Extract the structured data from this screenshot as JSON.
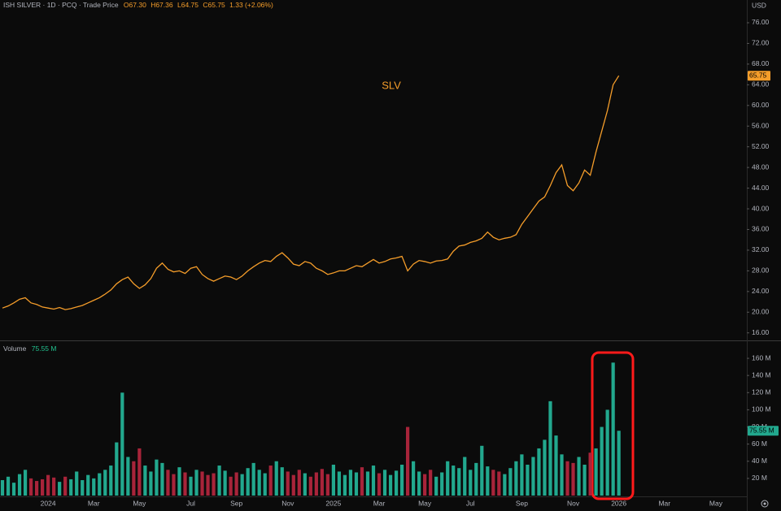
{
  "chart_data": [
    {
      "type": "line",
      "title": "ISH SILVER · 1D · PCQ · Trade Price",
      "ohlc_labels": [
        "O67.30",
        "H67.36",
        "L64.75",
        "C65.75"
      ],
      "change_label": "1.33 (+2.06%)",
      "annotation": "SLV",
      "currency": "USD",
      "last_price_label": "65.75",
      "color": "#f59d2a",
      "categories": [
        null,
        null,
        null,
        null,
        null,
        null,
        null,
        null,
        "2024",
        null,
        null,
        null,
        null,
        null,
        null,
        null,
        "Mar",
        null,
        null,
        null,
        null,
        null,
        null,
        null,
        "May",
        null,
        null,
        null,
        null,
        null,
        null,
        null,
        null,
        "Jul",
        null,
        null,
        null,
        null,
        null,
        null,
        null,
        "Sep",
        null,
        null,
        null,
        null,
        null,
        null,
        null,
        null,
        "Nov",
        null,
        null,
        null,
        null,
        null,
        null,
        null,
        "2025",
        null,
        null,
        null,
        null,
        null,
        null,
        null,
        "Mar",
        null,
        null,
        null,
        null,
        null,
        null,
        null,
        "May",
        null,
        null,
        null,
        null,
        null,
        null,
        null,
        "Jul",
        null,
        null,
        null,
        null,
        null,
        null,
        null,
        null,
        "Sep",
        null,
        null,
        null,
        null,
        null,
        null,
        null,
        null,
        "Nov",
        null,
        null,
        null,
        null,
        null,
        null,
        null,
        "2026",
        null,
        null,
        null,
        null,
        null,
        null,
        null,
        "Mar",
        null,
        null,
        null,
        null,
        null,
        null,
        null,
        null,
        "May",
        null,
        null,
        null,
        null,
        null
      ],
      "values": [
        20.8,
        21.2,
        21.8,
        22.5,
        22.8,
        21.8,
        21.5,
        21.0,
        20.8,
        20.6,
        20.9,
        20.5,
        20.7,
        21.0,
        21.3,
        21.8,
        22.3,
        22.8,
        23.5,
        24.3,
        25.5,
        26.3,
        26.8,
        25.5,
        24.6,
        25.3,
        26.5,
        28.5,
        29.5,
        28.3,
        27.8,
        28.0,
        27.5,
        28.5,
        28.8,
        27.3,
        26.5,
        26.0,
        26.5,
        27.0,
        26.8,
        26.3,
        27.0,
        28.0,
        28.8,
        29.5,
        30.0,
        29.8,
        30.8,
        31.5,
        30.5,
        29.3,
        29.0,
        29.8,
        29.5,
        28.5,
        28.0,
        27.3,
        27.6,
        28.0,
        28.0,
        28.5,
        29.0,
        28.8,
        29.5,
        30.2,
        29.5,
        29.8,
        30.3,
        30.5,
        30.8,
        28.0,
        29.3,
        30.0,
        29.8,
        29.5,
        29.9,
        30.0,
        30.3,
        31.8,
        32.8,
        33.0,
        33.5,
        33.8,
        34.3,
        35.5,
        34.5,
        34.0,
        34.3,
        34.5,
        35.0,
        37.0,
        38.5,
        40.0,
        41.5,
        42.3,
        44.5,
        47.0,
        48.5,
        44.5,
        43.5,
        45.0,
        47.5,
        46.5,
        51.0,
        55.0,
        59.0,
        64.0,
        65.75,
        null,
        null,
        null,
        null,
        null,
        null,
        null,
        null,
        null,
        null,
        null,
        null,
        null,
        null,
        null,
        null,
        null,
        null,
        null,
        null,
        null,
        null
      ],
      "ylim": [
        14.7,
        80.4
      ],
      "yticks": [
        {
          "value": 16,
          "label": "16.00"
        },
        {
          "value": 20,
          "label": "20.00"
        },
        {
          "value": 24,
          "label": "24.00"
        },
        {
          "value": 28,
          "label": "28.00"
        },
        {
          "value": 32,
          "label": "32.00"
        },
        {
          "value": 36,
          "label": "36.00"
        },
        {
          "value": 40,
          "label": "40.00"
        },
        {
          "value": 44,
          "label": "44.00"
        },
        {
          "value": 48,
          "label": "48.00"
        },
        {
          "value": 52,
          "label": "52.00"
        },
        {
          "value": 56,
          "label": "56.00"
        },
        {
          "value": 60,
          "label": "60.00"
        },
        {
          "value": 64,
          "label": "64.00"
        },
        {
          "value": 68,
          "label": "68.00"
        },
        {
          "value": 72,
          "label": "72.00"
        },
        {
          "value": 76,
          "label": "76.00"
        }
      ],
      "grid": false
    },
    {
      "type": "bar",
      "title": "Volume",
      "last_label": "75.55 M",
      "up_color": "#22a88e",
      "down_color": "#a8243a",
      "categories": [
        null,
        null,
        null,
        null,
        null,
        null,
        null,
        null,
        "2024",
        null,
        null,
        null,
        null,
        null,
        null,
        null,
        "Mar",
        null,
        null,
        null,
        null,
        null,
        null,
        null,
        "May",
        null,
        null,
        null,
        null,
        null,
        null,
        null,
        null,
        "Jul",
        null,
        null,
        null,
        null,
        null,
        null,
        null,
        "Sep",
        null,
        null,
        null,
        null,
        null,
        null,
        null,
        null,
        "Nov",
        null,
        null,
        null,
        null,
        null,
        null,
        null,
        "2025",
        null,
        null,
        null,
        null,
        null,
        null,
        null,
        "Mar",
        null,
        null,
        null,
        null,
        null,
        null,
        null,
        "May",
        null,
        null,
        null,
        null,
        null,
        null,
        null,
        "Jul",
        null,
        null,
        null,
        null,
        null,
        null,
        null,
        null,
        "Sep",
        null,
        null,
        null,
        null,
        null,
        null,
        null,
        null,
        "Nov",
        null,
        null,
        null,
        null,
        null,
        null,
        null,
        "2026",
        null,
        null,
        null,
        null,
        null,
        null,
        null,
        "Mar",
        null,
        null,
        null,
        null,
        null,
        null,
        null,
        null,
        "May",
        null,
        null,
        null,
        null,
        null
      ],
      "values": [
        18,
        22,
        15,
        25,
        30,
        20,
        17,
        19,
        24,
        21,
        16,
        22,
        19,
        28,
        18,
        24,
        20,
        26,
        30,
        35,
        62,
        120,
        45,
        40,
        55,
        35,
        28,
        42,
        38,
        30,
        25,
        33,
        27,
        22,
        30,
        28,
        24,
        26,
        35,
        29,
        22,
        27,
        25,
        32,
        38,
        30,
        26,
        35,
        40,
        33,
        28,
        24,
        30,
        26,
        22,
        27,
        31,
        25,
        36,
        28,
        24,
        30,
        27,
        33,
        28,
        35,
        26,
        30,
        24,
        29,
        36,
        80,
        40,
        28,
        25,
        30,
        22,
        27,
        40,
        35,
        32,
        45,
        30,
        38,
        58,
        34,
        30,
        28,
        25,
        32,
        40,
        48,
        36,
        45,
        55,
        65,
        110,
        70,
        48,
        40,
        38,
        45,
        36,
        50,
        55,
        80,
        100,
        155,
        75.55,
        null,
        null,
        null,
        null,
        null,
        null,
        null,
        null,
        null,
        null,
        null,
        null,
        null,
        null,
        null,
        null,
        null,
        null,
        null,
        null,
        null,
        null
      ],
      "ylim": [
        0,
        179
      ],
      "yticks": [
        {
          "value": 20,
          "label": "20 M"
        },
        {
          "value": 40,
          "label": "40 M"
        },
        {
          "value": 60,
          "label": "60 M"
        },
        {
          "value": 80,
          "label": "80 M"
        },
        {
          "value": 100,
          "label": "100 M"
        },
        {
          "value": 120,
          "label": "120 M"
        },
        {
          "value": 140,
          "label": "140 M"
        },
        {
          "value": 160,
          "label": "160 M"
        }
      ],
      "grid": false
    }
  ]
}
